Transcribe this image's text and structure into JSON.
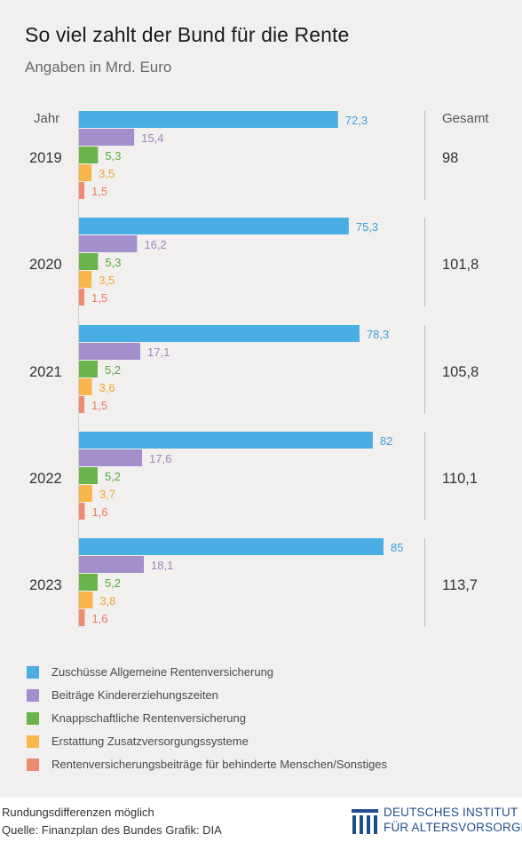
{
  "title": "So viel zahlt der Bund für die Rente",
  "subtitle": "Angaben in Mrd. Euro",
  "chart_data": {
    "type": "bar",
    "orientation": "horizontal",
    "title": "So viel zahlt der Bund für die Rente",
    "subtitle": "Angaben in Mrd. Euro",
    "year_header": "Jahr",
    "total_header": "Gesamt",
    "categories": [
      "2019",
      "2020",
      "2021",
      "2022",
      "2023"
    ],
    "totals": [
      "98",
      "101,8",
      "105,8",
      "110,1",
      "113,7"
    ],
    "series": [
      {
        "name": "Zuschüsse Allgemeine Rentenversicherung",
        "color": "#4aaee4",
        "values": [
          72.3,
          75.3,
          78.3,
          82,
          85
        ],
        "labels": [
          "72,3",
          "75,3",
          "78,3",
          "82",
          "85"
        ]
      },
      {
        "name": "Beiträge Kindererziehungszeiten",
        "color": "#a28fcc",
        "values": [
          15.4,
          16.2,
          17.1,
          17.6,
          18.1
        ],
        "labels": [
          "15,4",
          "16,2",
          "17,1",
          "17,6",
          "18,1"
        ]
      },
      {
        "name": "Knappschaftliche Rentenversicherung",
        "color": "#6ab44c",
        "values": [
          5.3,
          5.3,
          5.2,
          5.2,
          5.2
        ],
        "labels": [
          "5,3",
          "5,3",
          "5,2",
          "5,2",
          "5,2"
        ]
      },
      {
        "name": "Erstattung Zusatzversorgungssysteme",
        "color": "#f9b64c",
        "values": [
          3.5,
          3.5,
          3.6,
          3.7,
          3.8
        ],
        "labels": [
          "3,5",
          "3,5",
          "3,6",
          "3,7",
          "3,8"
        ]
      },
      {
        "name": "Rentenversicherungsbeiträge für behinderte Menschen/Sonstiges",
        "color": "#ef8a73",
        "values": [
          1.5,
          1.5,
          1.5,
          1.6,
          1.6
        ],
        "labels": [
          "1,5",
          "1,5",
          "1,5",
          "1,6",
          "1,6"
        ]
      }
    ],
    "xlim": [
      0,
      85
    ],
    "grid": false,
    "legend_position": "bottom"
  },
  "footer": {
    "note": "Rundungsdifferenzen möglich",
    "source": "Quelle: Finanzplan des Bundes  Grafik: DIA",
    "logo_line1": "DEUTSCHES INSTITUT",
    "logo_line2": "FÜR ALTERSVORSORGE",
    "logo_color": "#1f4e8c"
  }
}
